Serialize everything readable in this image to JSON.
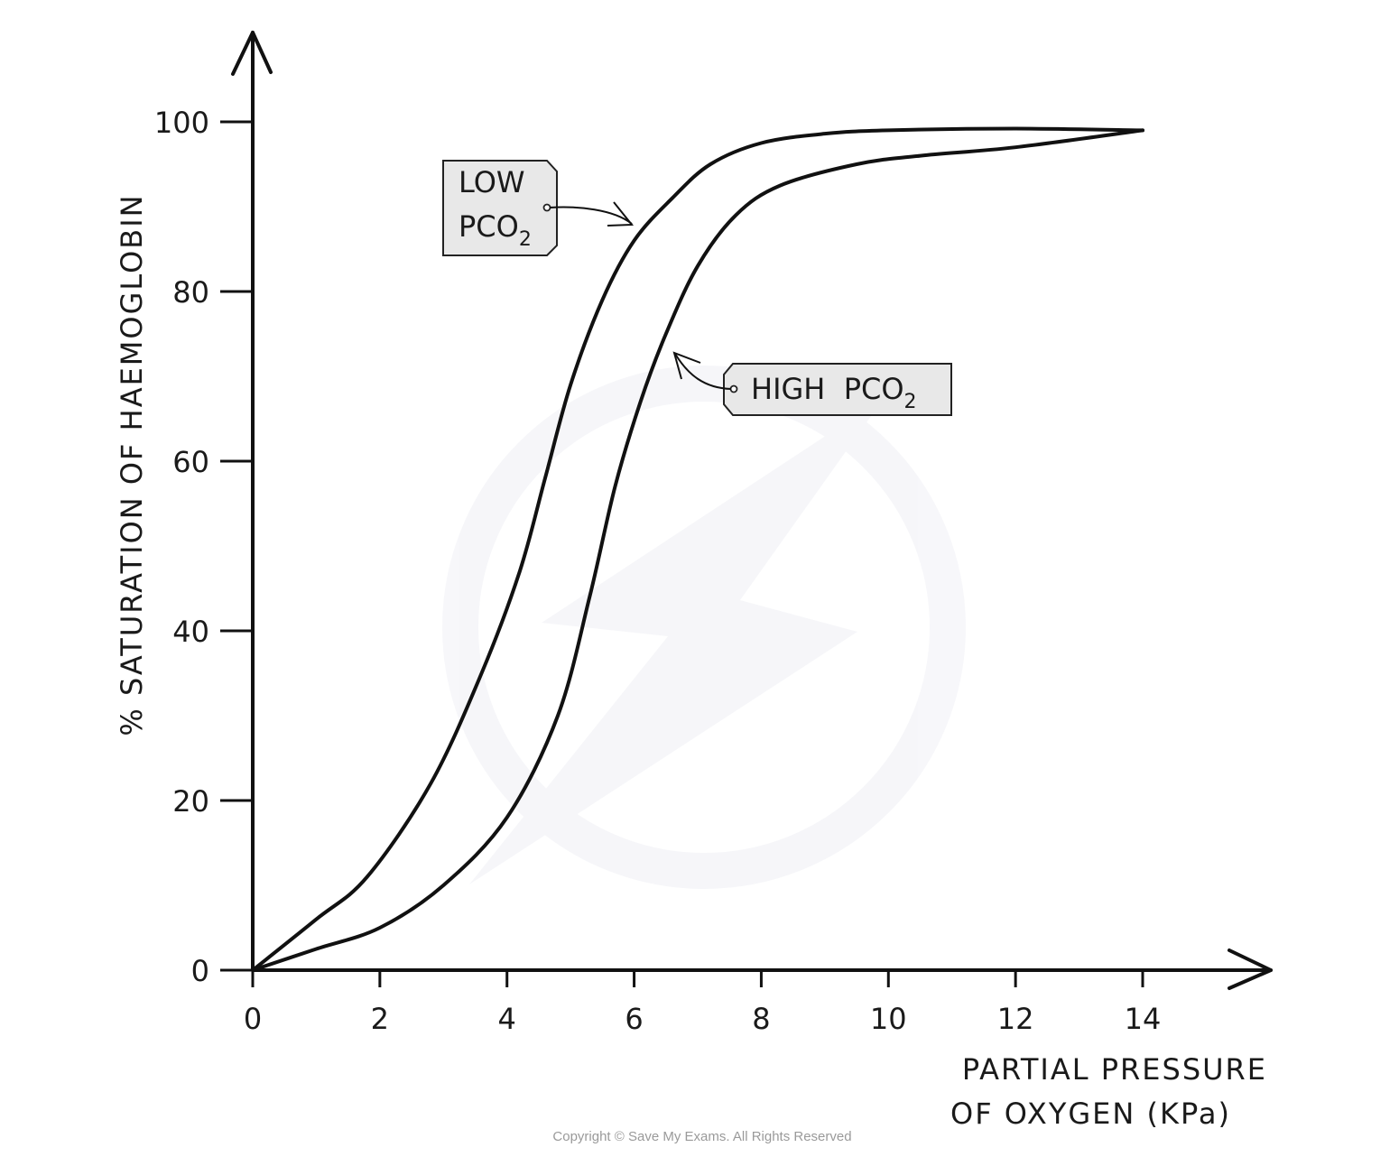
{
  "chart_data": {
    "type": "line",
    "xlabel_line1": "PARTIAL PRESSURE",
    "xlabel_line2": "OF OXYGEN (KPa)",
    "ylabel": "% SATURATION OF HAEMOGLOBIN",
    "xlim": [
      0,
      14
    ],
    "ylim": [
      0,
      100
    ],
    "x_ticks": [
      "0",
      "2",
      "4",
      "6",
      "8",
      "10",
      "12",
      "14"
    ],
    "y_ticks": [
      "0",
      "20",
      "40",
      "60",
      "80",
      "100"
    ],
    "grid": false,
    "series": [
      {
        "name": "LOW PCO2",
        "x": [
          0,
          1,
          1.8,
          2.8,
          3.6,
          4.2,
          4.6,
          5.0,
          5.5,
          6.0,
          6.6,
          7.2,
          8.0,
          9.0,
          10.0,
          12.0,
          14.0
        ],
        "y": [
          0,
          6,
          11,
          22,
          35,
          47,
          58,
          69,
          79,
          86,
          91,
          95,
          97.5,
          98.6,
          99,
          99.2,
          99
        ]
      },
      {
        "name": "HIGH PCO2",
        "x": [
          0,
          1,
          2,
          3,
          4,
          4.8,
          5.3,
          5.7,
          6.1,
          6.5,
          7.0,
          7.6,
          8.3,
          9.5,
          10.5,
          12.0,
          14.0
        ],
        "y": [
          0,
          2.5,
          5,
          10,
          18,
          30,
          44,
          57,
          67,
          75,
          83,
          89,
          92.5,
          95,
          96,
          97,
          99
        ]
      }
    ],
    "annotations": {
      "low": {
        "line1": "LOW",
        "line2": "PCO",
        "sub": "2"
      },
      "high": {
        "line1": "HIGH  PCO",
        "sub": "2"
      }
    }
  },
  "copyright": "Copyright © Save My Exams. All Rights Reserved"
}
